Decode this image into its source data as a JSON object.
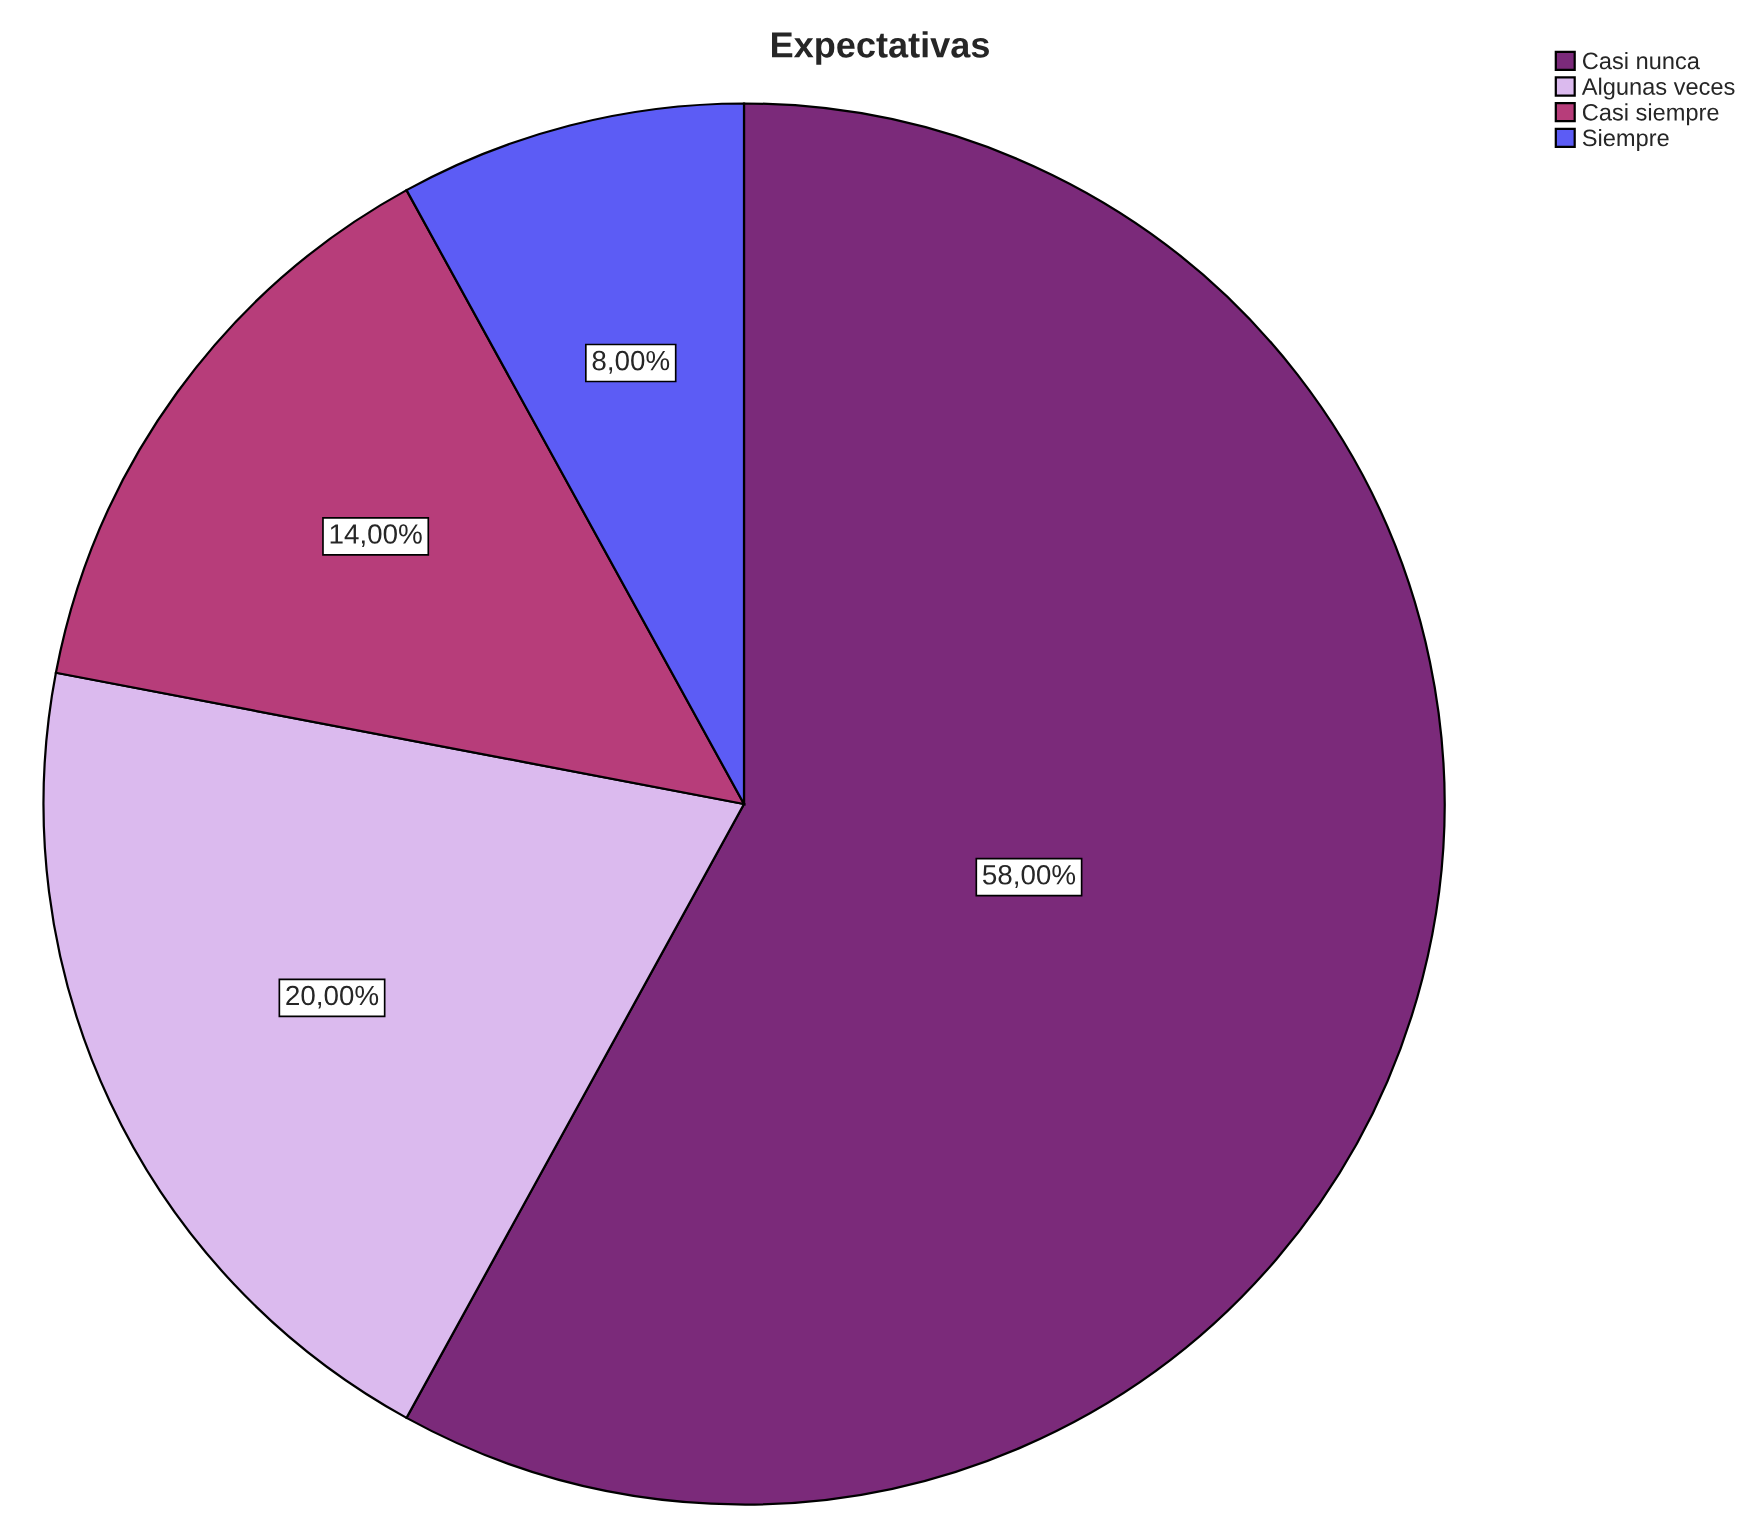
{
  "chart_data": {
    "type": "pie",
    "title": "Expectativas",
    "categories": [
      "Casi nunca",
      "Algunas veces",
      "Casi siempre",
      "Siempre"
    ],
    "values": [
      58,
      20,
      14,
      8
    ],
    "colors": [
      "#7b2a7a",
      "#dbbaee",
      "#b73d7a",
      "#5c5cf5"
    ],
    "value_labels": [
      "58,00%",
      "20,00%",
      "14,00%",
      "8,00%"
    ],
    "legend": "top right"
  }
}
